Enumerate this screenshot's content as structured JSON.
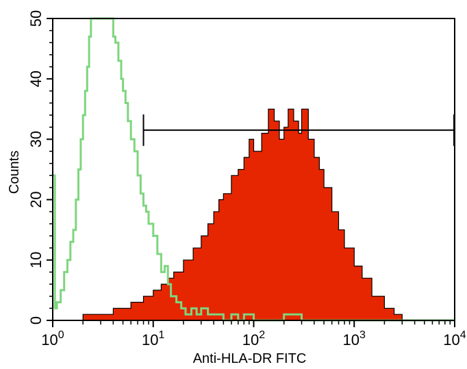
{
  "chart_data": {
    "type": "area",
    "title": "",
    "xlabel": "Anti-HLA-DR FITC",
    "ylabel": "Counts",
    "x_scale": "log",
    "xlim": [
      1,
      10000
    ],
    "ylim": [
      0,
      50
    ],
    "grid": false,
    "legend": "none",
    "x_ticks": [
      {
        "base": "10",
        "exp": "0"
      },
      {
        "base": "10",
        "exp": "1"
      },
      {
        "base": "10",
        "exp": "2"
      },
      {
        "base": "10",
        "exp": "3"
      },
      {
        "base": "10",
        "exp": "4"
      }
    ],
    "y_ticks": [
      "0",
      "10",
      "20",
      "30",
      "40",
      "50"
    ],
    "gate": {
      "x_start": 8,
      "x_end": 10000,
      "y": 31.5
    },
    "series": [
      {
        "color": "#7fd57f",
        "style": "outline",
        "x": [
          1.0,
          1.05,
          1.1,
          1.2,
          1.3,
          1.4,
          1.5,
          1.6,
          1.7,
          1.8,
          1.9,
          2.0,
          2.1,
          2.2,
          2.3,
          2.4,
          2.5,
          2.7,
          3.0,
          3.2,
          3.4,
          3.6,
          3.8,
          4.0,
          4.2,
          4.5,
          4.8,
          5.0,
          5.3,
          5.6,
          6.0,
          6.5,
          7.0,
          7.5,
          8.0,
          8.5,
          9.0,
          10,
          11,
          12,
          13,
          14,
          15,
          17,
          19,
          21,
          24,
          27,
          30,
          35,
          40,
          50,
          60,
          70,
          80,
          100,
          150,
          200,
          300,
          500,
          1000,
          3000,
          10000
        ],
        "values": [
          24,
          2,
          3,
          5,
          8,
          10,
          13,
          15,
          20,
          25,
          30,
          34,
          38,
          42,
          47,
          50,
          50,
          50,
          50,
          50,
          50,
          50,
          50,
          47,
          46,
          43,
          40,
          38,
          36,
          33,
          30,
          28,
          24,
          21,
          19,
          18,
          16,
          14,
          11,
          8,
          9,
          6,
          4,
          3,
          2,
          1,
          2,
          1,
          2,
          1,
          1,
          0,
          1,
          0,
          1,
          0,
          0,
          1,
          0,
          0,
          0,
          0,
          0
        ]
      },
      {
        "color": "#e62600",
        "style": "filled",
        "x": [
          1.2,
          2,
          4,
          6,
          8,
          10,
          12,
          14,
          16,
          20,
          25,
          30,
          35,
          40,
          45,
          50,
          60,
          70,
          80,
          90,
          100,
          120,
          140,
          160,
          180,
          200,
          220,
          250,
          280,
          300,
          350,
          400,
          450,
          500,
          600,
          700,
          800,
          1000,
          1200,
          1500,
          2000,
          2500,
          3000
        ],
        "values": [
          0,
          1,
          2,
          3,
          4,
          5,
          6,
          7,
          8,
          10,
          12,
          14,
          16,
          18,
          20,
          21,
          24,
          25,
          27,
          30,
          28,
          31,
          35,
          33,
          30,
          32,
          35,
          33,
          31,
          35,
          30,
          27,
          25,
          22,
          18,
          15,
          12,
          9,
          7,
          4,
          2,
          1,
          0
        ]
      }
    ]
  }
}
